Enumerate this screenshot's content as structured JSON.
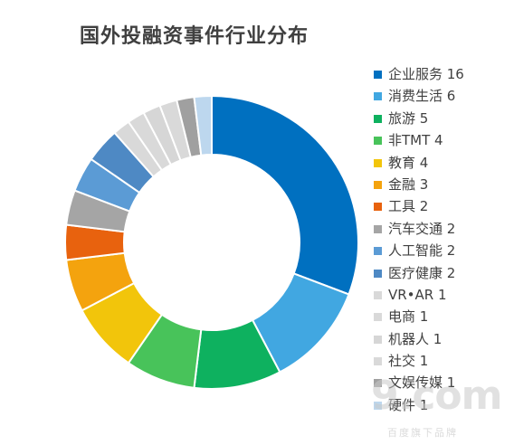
{
  "chart_data": {
    "type": "pie",
    "variant": "donut",
    "title": "国外投融资事件行业分布",
    "legend_position": "right",
    "categories": [
      "企业服务",
      "消费生活",
      "旅游",
      "非TMT",
      "教育",
      "金融",
      "工具",
      "汽车交通",
      "人工智能",
      "医疗健康",
      "VR•AR",
      "电商",
      "机器人",
      "社交",
      "文娱传媒",
      "硬件"
    ],
    "values": [
      16,
      6,
      5,
      4,
      4,
      3,
      2,
      2,
      2,
      2,
      1,
      1,
      1,
      1,
      1,
      1
    ],
    "colors": [
      "#0070C0",
      "#41A7E1",
      "#0EB15F",
      "#48C35A",
      "#F2C50B",
      "#F4A30E",
      "#E8620E",
      "#A5A5A5",
      "#5B9BD5",
      "#4E89C4",
      "#D9D9D9",
      "#D9D9D9",
      "#D6D6D6",
      "#D9D9D9",
      "#A0A0A0",
      "#BDD7EE"
    ]
  },
  "watermark": {
    "logo": "9.com",
    "tagline": "百度旗下品牌"
  }
}
